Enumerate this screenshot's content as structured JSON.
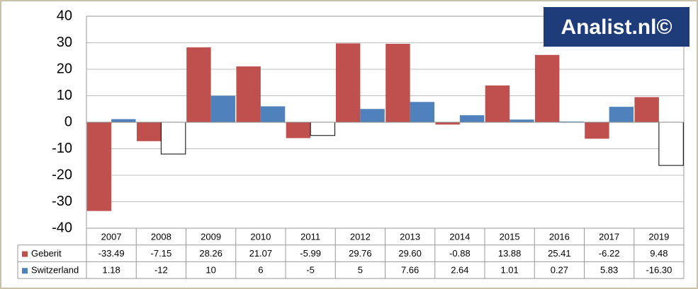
{
  "chart_data": {
    "type": "bar",
    "watermark": "Analist.nl©",
    "categories": [
      "2007",
      "2008",
      "2009",
      "2010",
      "2011",
      "2012",
      "2013",
      "2014",
      "2015",
      "2016",
      "2017",
      "2019"
    ],
    "series": [
      {
        "name": "Geberit",
        "color": "#c0504d",
        "values": [
          -33.49,
          -7.15,
          28.26,
          21.07,
          -5.99,
          29.76,
          29.6,
          -0.88,
          13.88,
          25.41,
          -6.22,
          9.48
        ],
        "value_labels": [
          "-33.49",
          "-7.15",
          "28.26",
          "21.07",
          "-5.99",
          "29.76",
          "29.60",
          "-0.88",
          "13.88",
          "25.41",
          "-6.22",
          "9.48"
        ]
      },
      {
        "name": "Switzerland",
        "color": "#4f81bd",
        "negative_color": "#ffffff",
        "values": [
          1.18,
          -12,
          10,
          6,
          -5,
          5,
          7.66,
          2.64,
          1.01,
          0.27,
          5.83,
          -16.3
        ],
        "value_labels": [
          "1.18",
          "-12",
          "10",
          "6",
          "-5",
          "5",
          "7.66",
          "2.64",
          "1.01",
          "0.27",
          "5.83",
          "-16.30"
        ]
      }
    ],
    "ylim": [
      -40,
      40
    ],
    "yticks": [
      40,
      30,
      20,
      10,
      0,
      -10,
      -20,
      -30,
      -40
    ],
    "grid": true
  }
}
